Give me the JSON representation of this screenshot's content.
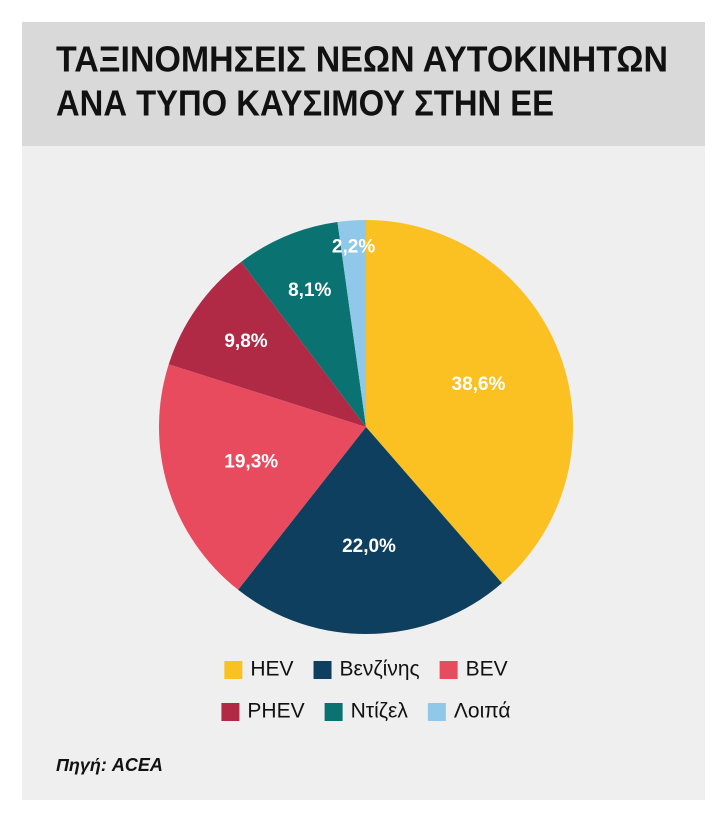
{
  "chart_data": {
    "type": "pie",
    "title": [
      "ΤΑΞΙΝΟΜΗΣΕΙΣ ΝΕΩΝ ΑΥΤΟΚΙΝΗΤΩΝ",
      "ΑΝΑ ΤΥΠΟ ΚΑΥΣΙΜΟΥ ΣΤΗΝ ΕΕ"
    ],
    "categories": [
      "HEV",
      "Βενζίνης",
      "BEV",
      "PHEV",
      "Ντίζελ",
      "Λοιπά"
    ],
    "values": [
      38.6,
      22.0,
      19.3,
      9.8,
      8.1,
      2.2
    ],
    "value_labels": [
      "38,6%",
      "22,0%",
      "19,3%",
      "9,8%",
      "8,1%",
      "2,2%"
    ],
    "colors": [
      "#fbc123",
      "#0e3f5e",
      "#e84b5e",
      "#b02a45",
      "#0b7272",
      "#90c8ea"
    ],
    "source": "Πηγή: ACEA"
  }
}
